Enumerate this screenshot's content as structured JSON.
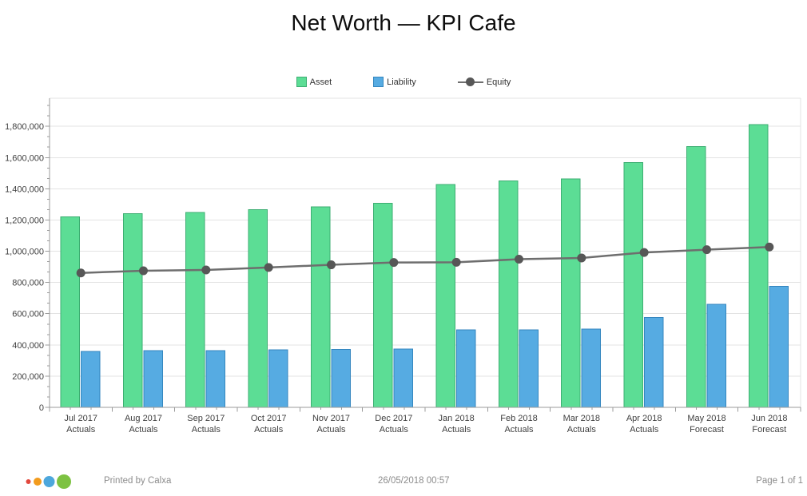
{
  "title": "Net Worth — KPI Cafe",
  "colors": {
    "asset_fill": "#5CDD95",
    "asset_stroke": "#3DAE72",
    "liability_fill": "#56ABE2",
    "liability_stroke": "#3486BF",
    "equity_line": "#6E6E6E",
    "equity_marker": "#575757",
    "gridline": "#E3E3E3",
    "axis": "#9B9B9B",
    "label": "#3F3F3F"
  },
  "legend": {
    "items": [
      {
        "label": "Asset",
        "marker": "square"
      },
      {
        "label": "Liability",
        "marker": "square"
      },
      {
        "label": "Equity",
        "marker": "line-dot"
      }
    ]
  },
  "chart_data": {
    "type": "bar",
    "title": "Net Worth — KPI Cafe",
    "xlabel": "",
    "ylabel": "",
    "ylim": [
      0,
      1980000
    ],
    "ytick_interval": 200000,
    "grid": "horizontal-major",
    "legend_position": "top-center",
    "categories": [
      "Jul 2017",
      "Aug 2017",
      "Sep 2017",
      "Oct 2017",
      "Nov 2017",
      "Dec 2017",
      "Jan 2018",
      "Feb 2018",
      "Mar 2018",
      "Apr 2018",
      "May 2018",
      "Jun 2018"
    ],
    "category_sublabels": [
      "Actuals",
      "Actuals",
      "Actuals",
      "Actuals",
      "Actuals",
      "Actuals",
      "Actuals",
      "Actuals",
      "Actuals",
      "Actuals",
      "Forecast",
      "Forecast"
    ],
    "series": [
      {
        "name": "Asset",
        "type": "bar",
        "values": [
          1220000,
          1241000,
          1249000,
          1266000,
          1285000,
          1306000,
          1428000,
          1450000,
          1464000,
          1568000,
          1671000,
          1812000
        ]
      },
      {
        "name": "Liability",
        "type": "bar",
        "values": [
          358000,
          363000,
          364000,
          369000,
          371000,
          374000,
          497000,
          497000,
          501000,
          576000,
          660000,
          776000
        ]
      },
      {
        "name": "Equity",
        "type": "line",
        "values": [
          861000,
          875000,
          880000,
          896000,
          913000,
          928000,
          929000,
          949000,
          957000,
          992000,
          1010000,
          1027000
        ]
      }
    ]
  },
  "footer": {
    "printed_by": "Printed by Calxa",
    "datetime": "26/05/2018 00:57",
    "page": "Page 1 of 1",
    "logo_colors": [
      "#E2483D",
      "#F29B1D",
      "#4DA7DC",
      "#7DC242"
    ]
  }
}
